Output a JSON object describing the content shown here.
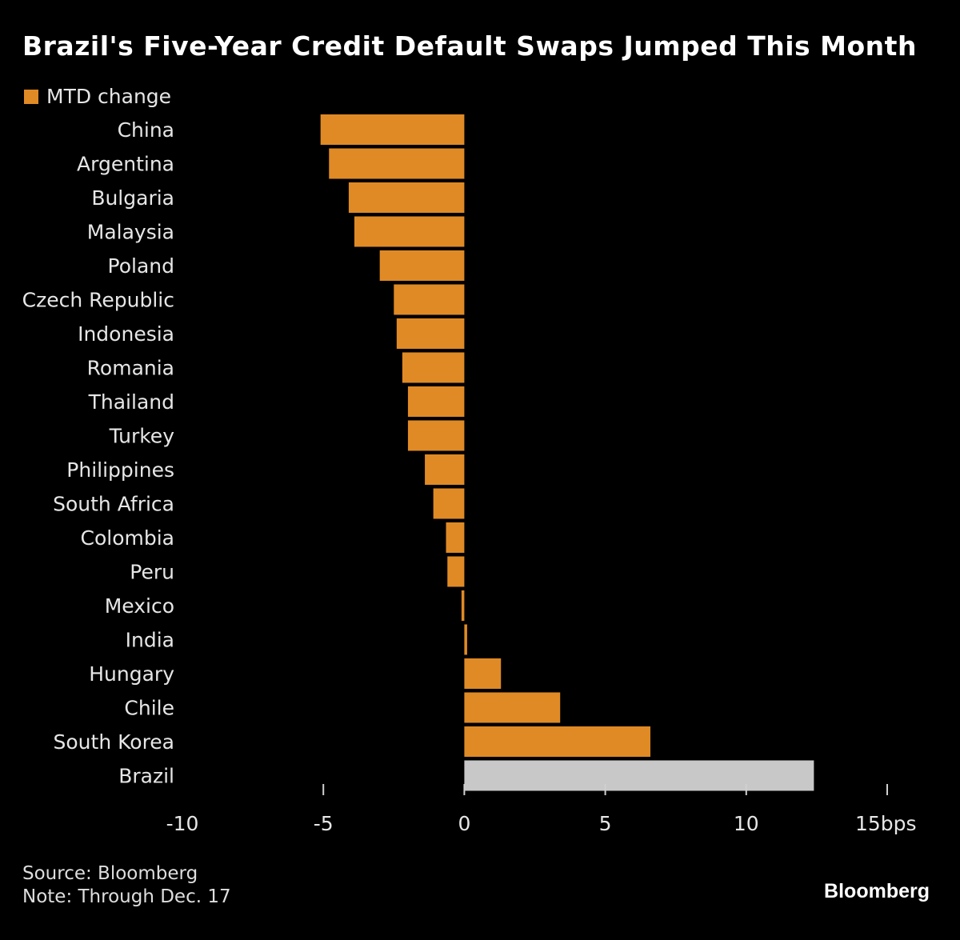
{
  "chart_data": {
    "type": "bar",
    "orientation": "horizontal",
    "title": "Brazil's Five-Year Credit Default Swaps Jumped This Month",
    "legend": [
      {
        "name": "MTD change",
        "color": "#e08a26"
      }
    ],
    "legend_position": "top-left",
    "categories": [
      "China",
      "Argentina",
      "Bulgaria",
      "Malaysia",
      "Poland",
      "Czech Republic",
      "Indonesia",
      "Romania",
      "Thailand",
      "Turkey",
      "Philippines",
      "South Africa",
      "Colombia",
      "Peru",
      "Mexico",
      "India",
      "Hungary",
      "Chile",
      "South Korea",
      "Brazil"
    ],
    "series": [
      {
        "name": "MTD change",
        "values": [
          -5.1,
          -4.8,
          -4.1,
          -3.9,
          -3.0,
          -2.5,
          -2.4,
          -2.2,
          -2.0,
          -2.0,
          -1.4,
          -1.1,
          -0.65,
          -0.6,
          -0.1,
          0.1,
          1.3,
          3.4,
          6.6,
          12.4
        ]
      }
    ],
    "bar_colors": {
      "default": "#e08a26",
      "highlight": "#c8c8c8",
      "highlight_category": "Brazil"
    },
    "xlabel": "",
    "ylabel": "",
    "xlim": [
      -10,
      15
    ],
    "x_ticks": [
      -10,
      -5,
      0,
      5,
      10,
      15
    ],
    "x_tick_labels": [
      "-10",
      "-5",
      "0",
      "5",
      "10",
      "15bps"
    ],
    "grid": false
  },
  "footer": {
    "source": "Source: Bloomberg",
    "note": "Note: Through Dec. 17"
  },
  "brand": "Bloomberg"
}
